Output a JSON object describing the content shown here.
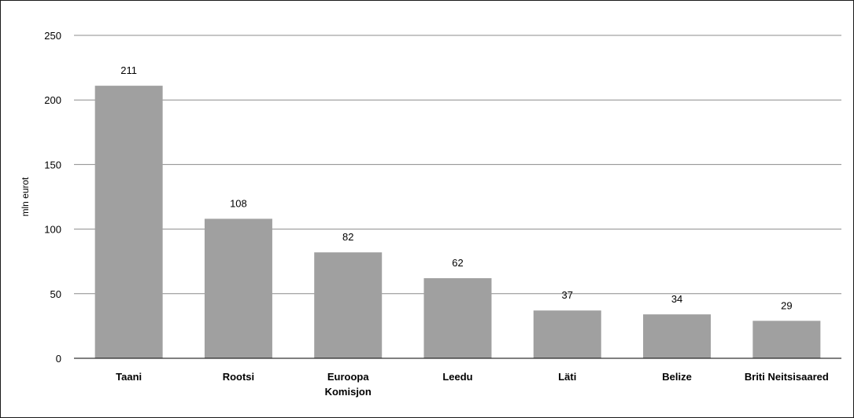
{
  "chart_data": {
    "type": "bar",
    "categories": [
      [
        "Taani"
      ],
      [
        "Rootsi"
      ],
      [
        "Euroopa",
        "Komisjon"
      ],
      [
        "Leedu"
      ],
      [
        "Läti"
      ],
      [
        "Belize"
      ],
      [
        "Briti Neitsisaared"
      ]
    ],
    "values": [
      211,
      108,
      82,
      62,
      37,
      34,
      29
    ],
    "data_labels": [
      "211",
      "108",
      "82",
      "62",
      "37",
      "34",
      "29"
    ],
    "title": "",
    "xlabel": "",
    "ylabel": "mln eurot",
    "ylim": [
      0,
      250
    ],
    "yticks": [
      0,
      50,
      100,
      150,
      200,
      250
    ],
    "grid": true,
    "legend": "none",
    "colors": {
      "bar": "#a0a0a0",
      "grid": "#8c8c8c",
      "axis": "#000000"
    }
  }
}
